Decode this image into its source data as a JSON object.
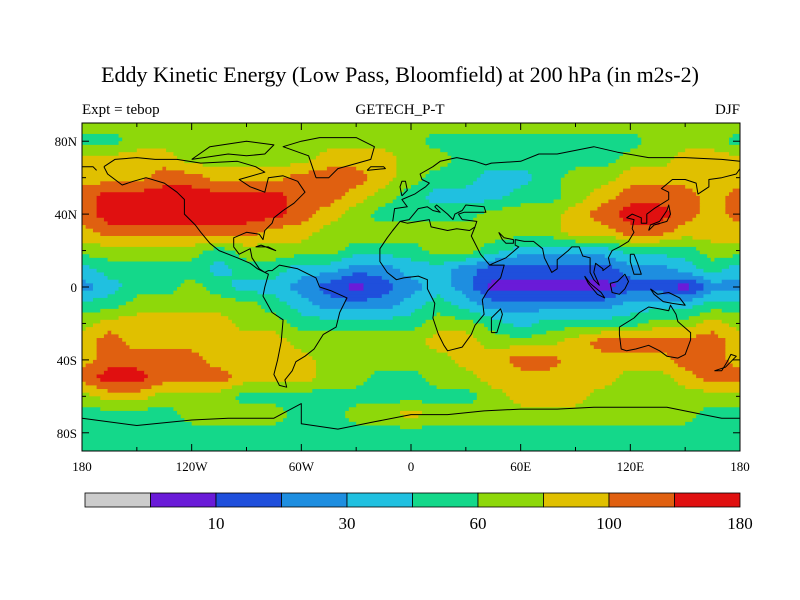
{
  "chart_data": {
    "type": "heatmap",
    "title": "Eddy Kinetic Energy (Low Pass, Bloomfield) at 200 hPa (in m2s-2)",
    "left_string": "Expt = tebop",
    "center_string": "GETECH_P-T",
    "right_string": "DJF",
    "x_ticks": [
      "180",
      "120W",
      "60W",
      "0",
      "60E",
      "120E",
      "180"
    ],
    "y_ticks": [
      "80N",
      "40N",
      "0",
      "40S",
      "80S"
    ],
    "xlim": [
      -180,
      180
    ],
    "ylim": [
      -90,
      90
    ],
    "colorbar": {
      "colors": [
        "#cccccc",
        "#6a1bd8",
        "#1f4fdc",
        "#1e8ee0",
        "#20c0e0",
        "#14d88a",
        "#8ed80a",
        "#e0c000",
        "#e06010",
        "#e01010"
      ],
      "labels": [
        "10",
        "30",
        "60",
        "100",
        "180"
      ]
    },
    "field": {
      "lon_step": 15,
      "lat_step": 10,
      "lats": [
        90,
        80,
        70,
        60,
        50,
        40,
        30,
        20,
        10,
        0,
        -10,
        -20,
        -30,
        -40,
        -50,
        -60,
        -70,
        -80,
        -90
      ],
      "levels": [
        [
          6,
          6,
          6,
          6,
          6,
          6,
          6,
          6,
          6,
          6,
          6,
          6,
          6,
          6,
          6,
          6,
          6,
          6,
          6,
          6,
          6,
          6,
          6,
          6,
          6
        ],
        [
          5,
          5,
          6,
          6,
          6,
          6,
          6,
          6,
          6,
          6,
          6,
          6,
          6,
          5,
          5,
          5,
          5,
          5,
          5,
          5,
          5,
          6,
          6,
          6,
          5
        ],
        [
          7,
          7,
          7,
          7,
          6,
          6,
          6,
          6,
          6,
          7,
          7,
          7,
          6,
          6,
          5,
          5,
          5,
          5,
          5,
          5,
          6,
          6,
          7,
          7,
          7
        ],
        [
          7,
          7,
          7,
          8,
          8,
          7,
          7,
          7,
          8,
          8,
          8,
          7,
          6,
          5,
          5,
          4,
          4,
          5,
          6,
          6,
          7,
          7,
          7,
          7,
          7
        ],
        [
          8,
          9,
          9,
          9,
          9,
          9,
          9,
          9,
          8,
          8,
          7,
          6,
          5,
          4,
          4,
          4,
          5,
          5,
          6,
          7,
          8,
          8,
          8,
          7,
          8
        ],
        [
          8,
          9,
          9,
          9,
          9,
          9,
          9,
          9,
          8,
          7,
          6,
          5,
          5,
          5,
          5,
          6,
          6,
          6,
          7,
          8,
          9,
          9,
          8,
          7,
          8
        ],
        [
          7,
          8,
          8,
          8,
          8,
          8,
          8,
          7,
          7,
          6,
          6,
          6,
          6,
          6,
          6,
          6,
          6,
          6,
          7,
          7,
          8,
          8,
          7,
          7,
          7
        ],
        [
          6,
          6,
          6,
          6,
          6,
          5,
          6,
          6,
          6,
          6,
          5,
          5,
          5,
          6,
          6,
          5,
          4,
          4,
          4,
          4,
          5,
          5,
          5,
          6,
          6
        ],
        [
          4,
          5,
          5,
          5,
          5,
          4,
          5,
          5,
          4,
          4,
          3,
          3,
          4,
          4,
          3,
          2,
          2,
          2,
          2,
          2,
          3,
          3,
          4,
          5,
          4
        ],
        [
          3,
          4,
          5,
          5,
          6,
          5,
          4,
          4,
          3,
          2,
          1,
          2,
          3,
          4,
          3,
          1,
          1,
          1,
          1,
          1,
          2,
          2,
          1,
          3,
          3
        ],
        [
          5,
          5,
          6,
          6,
          6,
          6,
          6,
          5,
          4,
          3,
          3,
          3,
          4,
          5,
          4,
          3,
          3,
          3,
          3,
          3,
          4,
          4,
          4,
          5,
          5
        ],
        [
          6,
          7,
          7,
          7,
          7,
          7,
          6,
          6,
          5,
          5,
          5,
          5,
          5,
          6,
          6,
          5,
          4,
          5,
          5,
          5,
          5,
          6,
          6,
          7,
          6
        ],
        [
          7,
          8,
          7,
          7,
          7,
          7,
          7,
          7,
          6,
          6,
          6,
          6,
          6,
          7,
          7,
          6,
          6,
          6,
          7,
          8,
          8,
          8,
          8,
          8,
          7
        ],
        [
          7,
          8,
          8,
          8,
          8,
          7,
          7,
          7,
          7,
          6,
          6,
          6,
          6,
          6,
          7,
          7,
          8,
          8,
          7,
          7,
          7,
          7,
          8,
          8,
          7
        ],
        [
          8,
          9,
          9,
          8,
          8,
          8,
          7,
          7,
          7,
          6,
          6,
          5,
          5,
          6,
          6,
          7,
          7,
          7,
          7,
          7,
          6,
          6,
          7,
          8,
          8
        ],
        [
          6,
          7,
          7,
          6,
          6,
          6,
          5,
          5,
          5,
          5,
          5,
          5,
          5,
          5,
          5,
          6,
          7,
          7,
          7,
          6,
          6,
          6,
          6,
          6,
          6
        ],
        [
          5,
          5,
          5,
          5,
          6,
          6,
          6,
          6,
          5,
          5,
          6,
          6,
          7,
          6,
          6,
          6,
          6,
          6,
          6,
          6,
          6,
          6,
          6,
          5,
          5
        ],
        [
          5,
          5,
          5,
          5,
          5,
          5,
          5,
          5,
          5,
          5,
          5,
          5,
          5,
          5,
          5,
          5,
          5,
          5,
          5,
          5,
          5,
          5,
          5,
          5,
          5
        ],
        [
          5,
          5,
          5,
          5,
          5,
          5,
          5,
          5,
          5,
          5,
          5,
          5,
          5,
          5,
          5,
          5,
          5,
          5,
          5,
          5,
          5,
          5,
          5,
          5,
          5
        ]
      ]
    }
  }
}
